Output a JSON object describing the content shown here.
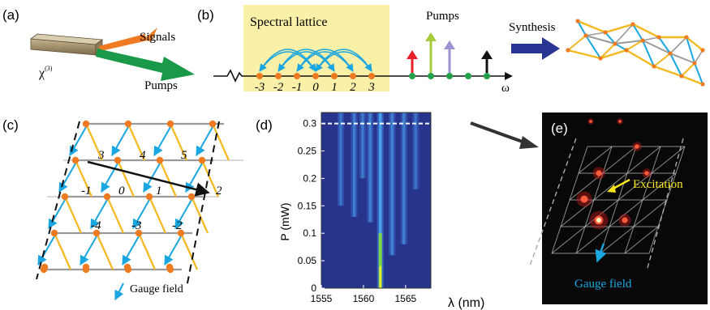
{
  "panels": {
    "a": {
      "label": "(a)",
      "chi_label": "χ",
      "chi_sup": "(3)",
      "signals_label": "Signals",
      "pumps_label": "Pumps"
    },
    "b": {
      "label": "(b)",
      "box_title": "Spectral lattice",
      "pumps_label": "Pumps",
      "synthesis_label": "Synthesis",
      "omega_label": "ω",
      "site_labels": [
        "-3",
        "-2",
        "-1",
        "0",
        "1",
        "2",
        "3"
      ],
      "pump_colors": [
        "#e8202a",
        "#a4cc3c",
        "#9b93d2",
        "#111111"
      ]
    },
    "c": {
      "label": "(c)",
      "site_labels": [
        "3",
        "4",
        "5",
        "-1",
        "0",
        "1",
        "2",
        "-4",
        "-3",
        "-2"
      ],
      "gauge_label": "Gauge field"
    },
    "d": {
      "label": "(d)",
      "ylabel": "P (mW)",
      "xlabel": "λ (nm)"
    },
    "e": {
      "label": "(e)",
      "excitation_label": "Excitation",
      "gauge_label": "Gauge field"
    }
  },
  "colors": {
    "lattice_blue": "#1aa6e0",
    "lattice_yellow": "#f4b820",
    "lattice_gray": "#9a9a9a",
    "site_orange": "#ee7b22",
    "site_green": "#23a04a",
    "synthesis_arrow": "#283593",
    "box_fill": "#fbf0a8"
  },
  "chart_data": {
    "type": "heatmap",
    "xlabel": "λ (nm)",
    "ylabel": "P (mW)",
    "xlim": [
      1555,
      1568
    ],
    "ylim": [
      0,
      0.32
    ],
    "xticks": [
      "1555",
      "1560",
      "1565"
    ],
    "yticks": [
      "0",
      "0.05",
      "0.1",
      "0.15",
      "0.2",
      "0.25",
      "0.3"
    ],
    "marked_power": 0.3,
    "lines": [
      {
        "wavelength": 1557.3,
        "intensity": 0.25,
        "onset": 0.15
      },
      {
        "wavelength": 1558.9,
        "intensity": 0.35,
        "onset": 0.13
      },
      {
        "wavelength": 1559.9,
        "intensity": 0.3,
        "onset": 0.2
      },
      {
        "wavelength": 1560.8,
        "intensity": 0.35,
        "onset": 0.12
      },
      {
        "wavelength": 1562.0,
        "intensity": 1.0,
        "onset": 0.0
      },
      {
        "wavelength": 1563.4,
        "intensity": 0.45,
        "onset": 0.06
      },
      {
        "wavelength": 1564.8,
        "intensity": 0.4,
        "onset": 0.08
      },
      {
        "wavelength": 1566.2,
        "intensity": 0.2,
        "onset": 0.18
      }
    ]
  }
}
